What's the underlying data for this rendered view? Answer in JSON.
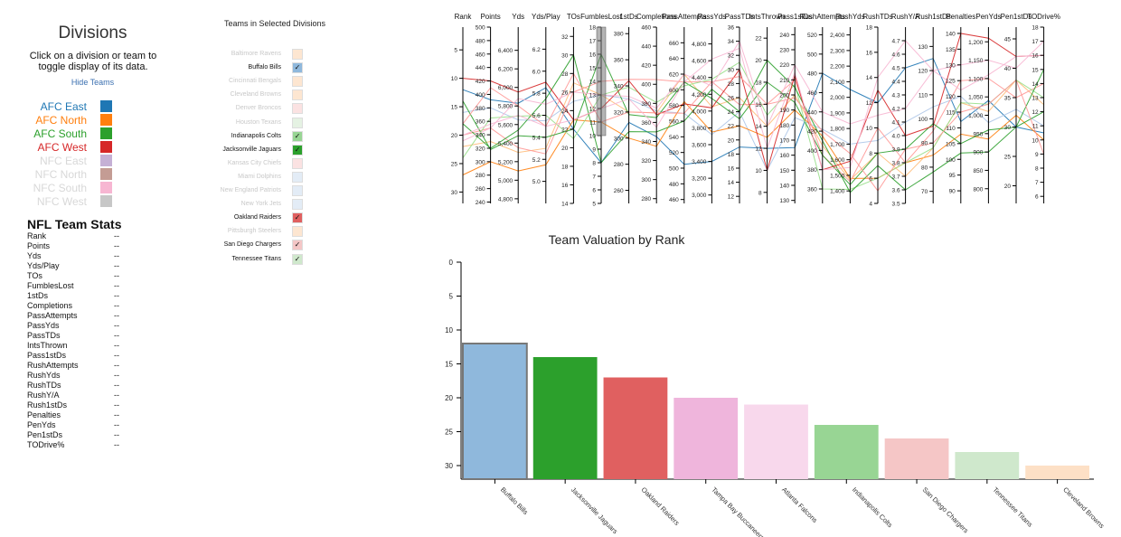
{
  "divisions_panel": {
    "title": "Divisions",
    "subtitle": "Click on a division or team to toggle display of its data.",
    "hide_link": "Hide Teams",
    "items": [
      {
        "label": "AFC East",
        "color": "#1f77b4",
        "active": true
      },
      {
        "label": "AFC North",
        "color": "#ff7f0e",
        "active": true
      },
      {
        "label": "AFC South",
        "color": "#2ca02c",
        "active": true
      },
      {
        "label": "AFC West",
        "color": "#d62728",
        "active": true
      },
      {
        "label": "NFC East",
        "color": "#c5b0d5",
        "active": false
      },
      {
        "label": "NFC North",
        "color": "#c49c94",
        "active": false
      },
      {
        "label": "NFC South",
        "color": "#f7b6d2",
        "active": false
      },
      {
        "label": "NFC West",
        "color": "#c7c7c7",
        "active": false
      }
    ]
  },
  "stats_panel": {
    "title": "NFL Team Stats",
    "rows": [
      {
        "label": "Rank",
        "value": "--"
      },
      {
        "label": "Points",
        "value": "--"
      },
      {
        "label": "Yds",
        "value": "--"
      },
      {
        "label": "Yds/Play",
        "value": "--"
      },
      {
        "label": "TOs",
        "value": "--"
      },
      {
        "label": "FumblesLost",
        "value": "--"
      },
      {
        "label": "1stDs",
        "value": "--"
      },
      {
        "label": "Completions",
        "value": "--"
      },
      {
        "label": "PassAttempts",
        "value": "--"
      },
      {
        "label": "PassYds",
        "value": "--"
      },
      {
        "label": "PassTDs",
        "value": "--"
      },
      {
        "label": "IntsThrown",
        "value": "--"
      },
      {
        "label": "Pass1stDs",
        "value": "--"
      },
      {
        "label": "RushAttempts",
        "value": "--"
      },
      {
        "label": "RushYds",
        "value": "--"
      },
      {
        "label": "RushTDs",
        "value": "--"
      },
      {
        "label": "RushY/A",
        "value": "--"
      },
      {
        "label": "Rush1stDs",
        "value": "--"
      },
      {
        "label": "Penalties",
        "value": "--"
      },
      {
        "label": "PenYds",
        "value": "--"
      },
      {
        "label": "Pen1stDs",
        "value": "--"
      },
      {
        "label": "TODrive%",
        "value": "--"
      }
    ]
  },
  "teams_panel": {
    "title": "Teams in Selected Divisions",
    "teams": [
      {
        "name": "Baltimore Ravens",
        "color": "#fde6d1",
        "checked": false,
        "dim": true
      },
      {
        "name": "Buffalo Bills",
        "color": "#8fb8dc",
        "checked": true,
        "dim": false
      },
      {
        "name": "Cincinnati Bengals",
        "color": "#fde6d1",
        "checked": false,
        "dim": true
      },
      {
        "name": "Cleveland Browns",
        "color": "#fde6d1",
        "checked": false,
        "dim": true
      },
      {
        "name": "Denver Broncos",
        "color": "#fbe2e2",
        "checked": false,
        "dim": true
      },
      {
        "name": "Houston Texans",
        "color": "#e5f2e3",
        "checked": false,
        "dim": true
      },
      {
        "name": "Indianapolis Colts",
        "color": "#98d594",
        "checked": true,
        "dim": false
      },
      {
        "name": "Jacksonville Jaguars",
        "color": "#2ca02c",
        "checked": true,
        "dim": false
      },
      {
        "name": "Kansas City Chiefs",
        "color": "#fbe2e2",
        "checked": false,
        "dim": true
      },
      {
        "name": "Miami Dolphins",
        "color": "#e3ecf6",
        "checked": false,
        "dim": true
      },
      {
        "name": "New England Patriots",
        "color": "#e3ecf6",
        "checked": false,
        "dim": true
      },
      {
        "name": "New York Jets",
        "color": "#e3ecf6",
        "checked": false,
        "dim": true
      },
      {
        "name": "Oakland Raiders",
        "color": "#e06060",
        "checked": true,
        "dim": false
      },
      {
        "name": "Pittsburgh Steelers",
        "color": "#fde6d1",
        "checked": false,
        "dim": true
      },
      {
        "name": "San Diego Chargers",
        "color": "#f4c6c6",
        "checked": true,
        "dim": false
      },
      {
        "name": "Tennessee Titans",
        "color": "#cfe8cc",
        "checked": true,
        "dim": false
      }
    ],
    "check_glyph": "✓"
  },
  "parallel_coords": {
    "axes": [
      {
        "name": "Rank",
        "min": 1,
        "max": 32,
        "inverted": true,
        "ticks": [
          "5",
          "10",
          "15",
          "20",
          "25",
          "30"
        ]
      },
      {
        "name": "Points",
        "min": 238,
        "max": 500,
        "inverted": false,
        "ticks": [
          "240",
          "260",
          "280",
          "300",
          "320",
          "340",
          "360",
          "380",
          "400",
          "420",
          "440",
          "460",
          "480",
          "500"
        ]
      },
      {
        "name": "Yds",
        "min": 4750,
        "max": 6650,
        "inverted": false,
        "ticks": [
          "4,800",
          "5,000",
          "5,200",
          "5,400",
          "5,600",
          "5,800",
          "6,000",
          "6,200",
          "6,400"
        ]
      },
      {
        "name": "Yds/Play",
        "min": 4.8,
        "max": 6.4,
        "inverted": false,
        "ticks": [
          "5.0",
          "5.2",
          "5.4",
          "5.6",
          "5.8",
          "6.0",
          "6.2"
        ]
      },
      {
        "name": "TOs",
        "min": 14,
        "max": 33,
        "inverted": false,
        "ticks": [
          "14",
          "16",
          "18",
          "20",
          "22",
          "24",
          "26",
          "28",
          "30",
          "32"
        ]
      },
      {
        "name": "FumblesLost",
        "min": 5,
        "max": 18,
        "inverted": false,
        "ticks": [
          "5",
          "6",
          "7",
          "8",
          "9",
          "10",
          "11",
          "12",
          "13",
          "14",
          "15",
          "16",
          "17",
          "18"
        ]
      },
      {
        "name": "1stDs",
        "min": 250,
        "max": 385,
        "inverted": false,
        "ticks": [
          "260",
          "280",
          "300",
          "320",
          "340",
          "360",
          "380"
        ]
      },
      {
        "name": "Completions",
        "min": 275,
        "max": 460,
        "inverted": false,
        "ticks": [
          "280",
          "300",
          "320",
          "340",
          "360",
          "380",
          "400",
          "420",
          "440",
          "460"
        ]
      },
      {
        "name": "PassAttempts",
        "min": 455,
        "max": 680,
        "inverted": false,
        "ticks": [
          "460",
          "480",
          "500",
          "520",
          "540",
          "560",
          "580",
          "600",
          "620",
          "640",
          "660"
        ]
      },
      {
        "name": "PassYds",
        "min": 2900,
        "max": 5000,
        "inverted": false,
        "ticks": [
          "3,000",
          "3,200",
          "3,400",
          "3,600",
          "3,800",
          "4,000",
          "4,200",
          "4,400",
          "4,600",
          "4,800"
        ]
      },
      {
        "name": "PassTDs",
        "min": 11,
        "max": 36,
        "inverted": false,
        "ticks": [
          "12",
          "14",
          "16",
          "18",
          "20",
          "22",
          "24",
          "26",
          "28",
          "30",
          "32",
          "34",
          "36"
        ]
      },
      {
        "name": "IntsThrown",
        "min": 7,
        "max": 23,
        "inverted": false,
        "ticks": [
          "8",
          "10",
          "12",
          "14",
          "16",
          "18",
          "20",
          "22"
        ]
      },
      {
        "name": "Pass1stDs",
        "min": 128,
        "max": 245,
        "inverted": false,
        "ticks": [
          "130",
          "140",
          "150",
          "160",
          "170",
          "180",
          "190",
          "200",
          "210",
          "220",
          "230",
          "240"
        ]
      },
      {
        "name": "RushAttempts",
        "min": 345,
        "max": 528,
        "inverted": false,
        "ticks": [
          "360",
          "380",
          "400",
          "420",
          "440",
          "460",
          "480",
          "500",
          "520"
        ]
      },
      {
        "name": "RushYds",
        "min": 1320,
        "max": 2450,
        "inverted": false,
        "ticks": [
          "1,400",
          "1,500",
          "1,600",
          "1,700",
          "1,800",
          "1,900",
          "2,000",
          "2,100",
          "2,200",
          "2,300",
          "2,400"
        ]
      },
      {
        "name": "RushTDs",
        "min": 4,
        "max": 18,
        "inverted": false,
        "ticks": [
          "4",
          "6",
          "8",
          "10",
          "12",
          "14",
          "16",
          "18"
        ]
      },
      {
        "name": "RushY/A",
        "min": 3.5,
        "max": 4.8,
        "inverted": false,
        "ticks": [
          "3.5",
          "3.6",
          "3.7",
          "3.8",
          "3.9",
          "4.0",
          "4.1",
          "4.2",
          "4.3",
          "4.4",
          "4.5",
          "4.6",
          "4.7"
        ]
      },
      {
        "name": "Rush1stDs",
        "min": 65,
        "max": 138,
        "inverted": false,
        "ticks": [
          "70",
          "80",
          "90",
          "100",
          "110",
          "120",
          "130"
        ]
      },
      {
        "name": "Penalties",
        "min": 86,
        "max": 142,
        "inverted": false,
        "ticks": [
          "90",
          "95",
          "100",
          "105",
          "110",
          "115",
          "120",
          "125",
          "130",
          "135",
          "140"
        ]
      },
      {
        "name": "PenYds",
        "min": 760,
        "max": 1240,
        "inverted": false,
        "ticks": [
          "800",
          "850",
          "900",
          "950",
          "1,000",
          "1,050",
          "1,100",
          "1,150",
          "1,200"
        ]
      },
      {
        "name": "Pen1stDs",
        "min": 17,
        "max": 47,
        "inverted": false,
        "ticks": [
          "20",
          "25",
          "30",
          "35",
          "40",
          "45"
        ]
      },
      {
        "name": "TODrive%",
        "min": 5.5,
        "max": 18,
        "inverted": false,
        "ticks": [
          "6",
          "7",
          "8",
          "9",
          "10",
          "11",
          "12",
          "13",
          "14",
          "15",
          "16",
          "17",
          "18"
        ]
      }
    ],
    "brush": {
      "axis": "FumblesLost",
      "min": 10,
      "max": 18
    },
    "lines": [
      {
        "color": "#1f77b4",
        "values": [
          12,
          392,
          5830,
          5.85,
          22,
          8,
          312,
          345,
          505,
          3400,
          19,
          12,
          165,
          480,
          2050,
          12,
          4.5,
          125,
          112,
          1040,
          30,
          10.5
        ]
      },
      {
        "color": "#aec7e8",
        "values": [
          16,
          380,
          5650,
          5.55,
          25,
          13,
          330,
          372,
          570,
          3720,
          24,
          10,
          185,
          422,
          1700,
          9,
          4.1,
          105,
          120,
          980,
          33,
          11
        ]
      },
      {
        "color": "#ff7f0e",
        "values": [
          27,
          300,
          5100,
          5.15,
          23,
          11,
          300,
          335,
          585,
          3750,
          22,
          13,
          190,
          415,
          1480,
          6,
          3.8,
          85,
          108,
          935,
          32,
          10
        ]
      },
      {
        "color": "#ffbb78",
        "values": [
          22,
          330,
          5300,
          5.3,
          27,
          13,
          320,
          370,
          620,
          4050,
          26,
          14,
          200,
          405,
          1470,
          8,
          3.7,
          88,
          118,
          1010,
          38,
          12.5
        ]
      },
      {
        "color": "#ff9896",
        "values": [
          20,
          350,
          5350,
          5.25,
          26,
          14,
          345,
          405,
          610,
          4350,
          25,
          16,
          210,
          395,
          1460,
          10,
          3.8,
          95,
          125,
          1100,
          35,
          14
        ]
      },
      {
        "color": "#2ca02c",
        "values": [
          14,
          318,
          5480,
          5.4,
          22,
          16,
          318,
          365,
          610,
          4150,
          23,
          18,
          195,
          395,
          1440,
          8,
          3.9,
          98,
          105,
          960,
          30,
          12
        ]
      },
      {
        "color": "#98df8a",
        "values": [
          24,
          365,
          5690,
          5.6,
          21,
          13,
          339,
          381,
          605,
          4380,
          31,
          15,
          207,
          360,
          1410,
          6,
          3.8,
          88,
          118,
          1030,
          38,
          13
        ]
      },
      {
        "color": "#2ca02c",
        "values": [
          18,
          320,
          5540,
          5.75,
          30,
          8,
          305,
          350,
          560,
          4260,
          24,
          20,
          205,
          410,
          1390,
          7,
          3.6,
          78,
          102,
          900,
          30,
          15
        ]
      },
      {
        "color": "#d62728",
        "values": [
          10,
          420,
          5950,
          5.9,
          23,
          12,
          344,
          368,
          582,
          4038,
          30,
          10,
          213,
          380,
          1590,
          13,
          4.0,
          97,
          140,
          1210,
          42,
          16
        ]
      },
      {
        "color": "#ff9896",
        "values": [
          18,
          410,
          5800,
          5.5,
          28,
          11,
          320,
          370,
          570,
          4350,
          29,
          16,
          198,
          420,
          1640,
          5,
          3.9,
          90,
          115,
          1030,
          38,
          9
        ]
      },
      {
        "color": "#f7b6d2",
        "values": [
          20,
          356,
          5700,
          5.5,
          23,
          12,
          330,
          355,
          610,
          4620,
          33,
          12,
          215,
          380,
          1550,
          14,
          4.7,
          120,
          130,
          1150,
          40,
          17
        ]
      },
      {
        "color": "#f7b6d2",
        "values": [
          21,
          350,
          5880,
          5.7,
          26,
          13,
          332,
          375,
          620,
          4300,
          34,
          14,
          220,
          440,
          1830,
          11,
          4.2,
          120,
          122,
          1110,
          42,
          16
        ]
      }
    ]
  },
  "chart_data": {
    "type": "bar",
    "title": "Team Valuation by Rank",
    "categories": [
      "Buffalo Bills",
      "Jacksonville Jaguars",
      "Oakland Raiders",
      "Tampa Bay Buccaneers",
      "Atlanta Falcons",
      "Indianapolis Colts",
      "San Diego Chargers",
      "Tennessee Titans",
      "Cleveland Browns"
    ],
    "values": [
      12,
      14,
      17,
      20,
      21,
      24,
      26,
      28,
      30
    ],
    "colors": [
      "#8fb8dc",
      "#2ca02c",
      "#e06060",
      "#efb5dc",
      "#f8d8ec",
      "#98d594",
      "#f5c6c6",
      "#cfe8cc",
      "#fde0c6"
    ],
    "highlighted": "Buffalo Bills",
    "ylim": [
      0,
      32
    ],
    "yticks": [
      0,
      5,
      10,
      15,
      20,
      25,
      30
    ],
    "inverted": true
  }
}
